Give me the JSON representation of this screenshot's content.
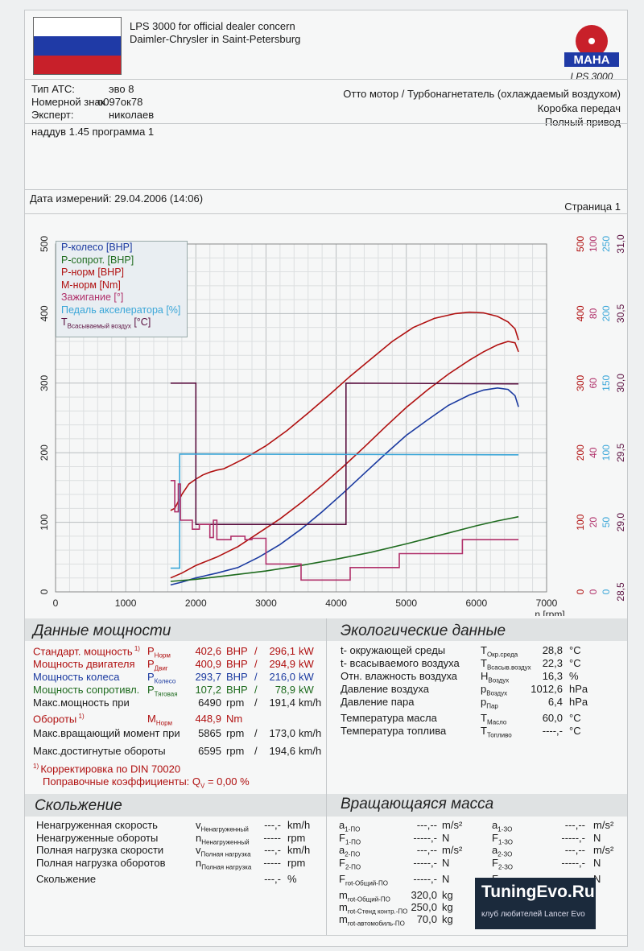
{
  "header": {
    "title_line1": "LPS 3000 for official dealer concern",
    "title_line2": "Daimler-Chrysler in Saint-Petersburg",
    "logo_text": "MAHA",
    "logo_sub": "LPS 3000"
  },
  "vehicle": {
    "type_label": "Тип АТС:",
    "type_value": "эво 8",
    "plate_label": "Номерной знак",
    "plate_value": "о097ок78",
    "expert_label": "Эксперт:",
    "expert_value": "николаев",
    "engine": "Отто мотор / Турбонагнетатель (охлаждаемый воздухом)",
    "gearbox": "Коробка передач",
    "drive": "Полный привод",
    "note": "наддув 1.45 программа 1"
  },
  "measure": {
    "date_text": "Дата измерений: 29.04.2006 (14:06)",
    "page_text": "Страница 1"
  },
  "legend": {
    "items": [
      {
        "text": "P-колесо [BHP]",
        "color": "#1b3aa0"
      },
      {
        "text": "P-сопрот. [BHP]",
        "color": "#1e6b1e"
      },
      {
        "text": "P-норм [BHP]",
        "color": "#b01010"
      },
      {
        "text": "M-норм [Nm]",
        "color": "#b01010"
      },
      {
        "text": "Зажигание [°]",
        "color": "#b0306a"
      },
      {
        "text": "Педаль акселератора [%]",
        "color": "#3aa6d8"
      },
      {
        "text": "T",
        "sub": "Всасываемый воздух",
        "tail": " [°C]",
        "color": "#5a1040"
      }
    ]
  },
  "chart_data": {
    "type": "line",
    "x_label": "n [rpm]",
    "x_ticks": [
      "0",
      "1000",
      "2000",
      "3000",
      "4000",
      "5000",
      "6000",
      "7000"
    ],
    "xlim": [
      0,
      7000
    ],
    "ylim": [
      0,
      500
    ],
    "y_ticks_left": [
      "0",
      "100",
      "200",
      "300",
      "400",
      "500"
    ],
    "right_axes": [
      {
        "color": "#b01010",
        "ticks": [
          "0",
          "100",
          "200",
          "300",
          "400",
          "500"
        ]
      },
      {
        "color": "#b0306a",
        "ticks": [
          "0",
          "20",
          "40",
          "60",
          "80",
          "100"
        ]
      },
      {
        "color": "#3aa6d8",
        "ticks": [
          "0",
          "50",
          "100",
          "150",
          "200",
          "250"
        ]
      },
      {
        "color": "#5a1040",
        "ticks": [
          "28,5",
          "29,0",
          "29,5",
          "30,0",
          "30,5",
          "31,0"
        ]
      }
    ],
    "grid": true,
    "series": [
      {
        "color": "#b01010",
        "points": [
          [
            1640,
            117
          ],
          [
            1700,
            120
          ],
          [
            1750,
            130
          ],
          [
            1800,
            140
          ],
          [
            1900,
            155
          ],
          [
            2000,
            162
          ],
          [
            2100,
            168
          ],
          [
            2200,
            172
          ],
          [
            2300,
            175
          ],
          [
            2400,
            177
          ],
          [
            2500,
            182
          ],
          [
            2700,
            192
          ],
          [
            3000,
            210
          ],
          [
            3300,
            232
          ],
          [
            3600,
            257
          ],
          [
            3900,
            283
          ],
          [
            4200,
            310
          ],
          [
            4500,
            335
          ],
          [
            4800,
            360
          ],
          [
            5100,
            380
          ],
          [
            5400,
            393
          ],
          [
            5700,
            400
          ],
          [
            5900,
            402
          ],
          [
            6100,
            401
          ],
          [
            6300,
            396
          ],
          [
            6450,
            388
          ],
          [
            6550,
            378
          ],
          [
            6600,
            362
          ]
        ]
      },
      {
        "color": "#b01010",
        "points": [
          [
            1640,
            20
          ],
          [
            1800,
            27
          ],
          [
            2000,
            38
          ],
          [
            2300,
            50
          ],
          [
            2600,
            65
          ],
          [
            2900,
            85
          ],
          [
            3200,
            105
          ],
          [
            3500,
            128
          ],
          [
            3800,
            153
          ],
          [
            4100,
            180
          ],
          [
            4400,
            208
          ],
          [
            4700,
            237
          ],
          [
            5000,
            265
          ],
          [
            5300,
            290
          ],
          [
            5600,
            313
          ],
          [
            5900,
            333
          ],
          [
            6100,
            345
          ],
          [
            6300,
            355
          ],
          [
            6450,
            360
          ],
          [
            6550,
            358
          ],
          [
            6600,
            345
          ]
        ]
      },
      {
        "color": "#1b3aa0",
        "points": [
          [
            1640,
            10
          ],
          [
            1800,
            14
          ],
          [
            2000,
            20
          ],
          [
            2300,
            27
          ],
          [
            2600,
            35
          ],
          [
            2900,
            50
          ],
          [
            3200,
            68
          ],
          [
            3500,
            90
          ],
          [
            3800,
            115
          ],
          [
            4100,
            142
          ],
          [
            4400,
            170
          ],
          [
            4700,
            198
          ],
          [
            5000,
            225
          ],
          [
            5300,
            247
          ],
          [
            5600,
            268
          ],
          [
            5900,
            283
          ],
          [
            6100,
            290
          ],
          [
            6300,
            293
          ],
          [
            6450,
            291
          ],
          [
            6550,
            282
          ],
          [
            6600,
            266
          ]
        ]
      },
      {
        "color": "#1e6b1e",
        "points": [
          [
            1640,
            15
          ],
          [
            2000,
            18
          ],
          [
            2500,
            24
          ],
          [
            3000,
            30
          ],
          [
            3500,
            38
          ],
          [
            4000,
            47
          ],
          [
            4500,
            57
          ],
          [
            5000,
            69
          ],
          [
            5500,
            82
          ],
          [
            6000,
            95
          ],
          [
            6300,
            102
          ],
          [
            6600,
            108
          ]
        ]
      },
      {
        "color": "#5a1040",
        "points": [
          [
            1640,
            300
          ],
          [
            2000,
            300
          ],
          [
            2000,
            97
          ],
          [
            4140,
            97
          ],
          [
            4140,
            300
          ],
          [
            6600,
            299
          ]
        ]
      },
      {
        "color": "#3aa6d8",
        "points": [
          [
            1640,
            34
          ],
          [
            1770,
            34
          ],
          [
            1770,
            198
          ],
          [
            6600,
            197
          ]
        ]
      },
      {
        "color": "#b0306a",
        "points": [
          [
            1640,
            160
          ],
          [
            1700,
            160
          ],
          [
            1700,
            115
          ],
          [
            1750,
            115
          ],
          [
            1750,
            155
          ],
          [
            1780,
            155
          ],
          [
            1780,
            103
          ],
          [
            1950,
            103
          ],
          [
            1950,
            90
          ],
          [
            2050,
            90
          ],
          [
            2050,
            97
          ],
          [
            2200,
            97
          ],
          [
            2200,
            78
          ],
          [
            2250,
            78
          ],
          [
            2250,
            103
          ],
          [
            2300,
            103
          ],
          [
            2300,
            75
          ],
          [
            2500,
            75
          ],
          [
            2500,
            80
          ],
          [
            2700,
            80
          ],
          [
            2700,
            75
          ],
          [
            2800,
            75
          ],
          [
            2800,
            77
          ],
          [
            3000,
            77
          ],
          [
            3000,
            40
          ],
          [
            3500,
            40
          ],
          [
            3500,
            17
          ],
          [
            4100,
            17
          ],
          [
            4100,
            17
          ],
          [
            4200,
            17
          ],
          [
            4200,
            35
          ],
          [
            4900,
            35
          ],
          [
            4900,
            55
          ],
          [
            5800,
            55
          ],
          [
            5800,
            75
          ],
          [
            6600,
            75
          ]
        ]
      }
    ]
  },
  "power": {
    "title": "Данные мощности",
    "rows": [
      {
        "label": "Стандарт. мощность",
        "sup": "1)",
        "sym": "P",
        "sub": "Норм",
        "v1": "402,6",
        "u1": "BHP",
        "v2": "296,1",
        "u2": "kW",
        "cls": "red"
      },
      {
        "label": "Мощность двигателя",
        "sup": "",
        "sym": "P",
        "sub": "Двиг",
        "v1": "400,9",
        "u1": "BHP",
        "v2": "294,9",
        "u2": "kW",
        "cls": "red"
      },
      {
        "label": "Мощность колеса",
        "sup": "",
        "sym": "P",
        "sub": "Колесо",
        "v1": "293,7",
        "u1": "BHP",
        "v2": "216,0",
        "u2": "kW",
        "cls": "blue"
      },
      {
        "label": "Мощность сопротивл.",
        "sup": "",
        "sym": "P",
        "sub": "Тяговая",
        "v1": "107,2",
        "u1": "BHP",
        "v2": "78,9",
        "u2": "kW",
        "cls": "green"
      },
      {
        "label": "Макс.мощность при",
        "sup": "",
        "sym": "",
        "sub": "",
        "v1": "6490",
        "u1": "rpm",
        "v2": "191,4",
        "u2": "km/h",
        "cls": ""
      }
    ],
    "torque": {
      "label": "Обороты",
      "sup": "1)",
      "sym": "M",
      "sub": "Норм",
      "v1": "448,9",
      "u1": "Nm"
    },
    "rows2": [
      {
        "label": "Макс.вращающий момент при",
        "v1": "5865",
        "u1": "rpm",
        "v2": "173,0",
        "u2": "km/h"
      },
      {
        "label": "Макс.достигнутые обороты",
        "v1": "6595",
        "u1": "rpm",
        "v2": "194,6",
        "u2": "km/h"
      }
    ],
    "note1": "Корректировка по DIN 70020",
    "note1_sup": "1)",
    "note2": "Поправочные коэффициенты: Q",
    "note2_sub": "V",
    "note2_tail": " =   0,00 %"
  },
  "eco": {
    "title": "Экологические данные",
    "rows": [
      {
        "label": "t- окружающей среды",
        "sym": "T",
        "sub": "Окр.среда",
        "v": "28,8",
        "u": "°C"
      },
      {
        "label": "t- всасываемого воздуха",
        "sym": "T",
        "sub": "Всасыв.воздух",
        "v": "22,3",
        "u": "°C"
      },
      {
        "label": "Отн. влажность воздуха",
        "sym": "H",
        "sub": "Воздух",
        "v": "16,3",
        "u": "%"
      },
      {
        "label": "Давление воздуха",
        "sym": "p",
        "sub": "Воздух",
        "v": "1012,6",
        "u": "hPa"
      },
      {
        "label": "Давление пара",
        "sym": "p",
        "sub": "Пар",
        "v": "6,4",
        "u": "hPa"
      },
      {
        "label": "Температура масла",
        "sym": "T",
        "sub": "Масло",
        "v": "60,0",
        "u": "°C"
      },
      {
        "label": "Температура топлива",
        "sym": "T",
        "sub": "Топливо",
        "v": "----,-",
        "u": "°C"
      }
    ]
  },
  "slip": {
    "title": "Скольжение",
    "rows": [
      {
        "label": "Ненагруженная  скорость",
        "sym": "v",
        "sub": "Ненагруженный",
        "v": "---,-",
        "u": "km/h"
      },
      {
        "label": "Ненагруженные  обороты",
        "sym": "n",
        "sub": "Ненагруженный",
        "v": "-----",
        "u": "rpm"
      },
      {
        "label": "Полная нагрузка скорости",
        "sym": "v",
        "sub": "Полная нагрузка",
        "v": "---,-",
        "u": "km/h"
      },
      {
        "label": "Полная нагрузка оборотов",
        "sym": "n",
        "sub": "Полная нагрузка",
        "v": "-----",
        "u": "rpm"
      },
      {
        "label": "Скольжение",
        "sym": "",
        "sub": "",
        "v": "---,-",
        "u": "%"
      }
    ]
  },
  "mass": {
    "title": "Вращающаяся масса",
    "left": [
      {
        "sym": "a",
        "sub": "1-ПО",
        "v": "---,--",
        "u": "m/s²"
      },
      {
        "sym": "F",
        "sub": "1-ПО",
        "v": "-----,-",
        "u": "N"
      },
      {
        "sym": "a",
        "sub": "2-ПО",
        "v": "---,--",
        "u": "m/s²"
      },
      {
        "sym": "F",
        "sub": "2-ПО",
        "v": "-----,-",
        "u": "N"
      },
      {
        "sym": "F",
        "sub": "rot-Общий-ПО",
        "v": "-----,-",
        "u": "N"
      },
      {
        "sym": "m",
        "sub": "rot-Общий-ПО",
        "v": "320,0",
        "u": "kg"
      },
      {
        "sym": "m",
        "sub": "rot-Стенд контр.-ПО",
        "v": "250,0",
        "u": "kg"
      },
      {
        "sym": "m",
        "sub": "rot-автомобиль-ПО",
        "v": "70,0",
        "u": "kg"
      }
    ],
    "right": [
      {
        "sym": "a",
        "sub": "1-ЗО",
        "v": "---,--",
        "u": "m/s²"
      },
      {
        "sym": "F",
        "sub": "1-ЗО",
        "v": "-----,-",
        "u": "N"
      },
      {
        "sym": "a",
        "sub": "2-ЗО",
        "v": "---,--",
        "u": "m/s²"
      },
      {
        "sym": "F",
        "sub": "2-ЗО",
        "v": "-----,-",
        "u": "N"
      },
      {
        "sym": "F",
        "sub": "rot-Общий-ЗО",
        "v": "-----,-",
        "u": "N"
      },
      {
        "sym": "m",
        "sub": "",
        "v": "",
        "u": ""
      },
      {
        "sym": "m",
        "sub": "",
        "v": "",
        "u": ""
      },
      {
        "sym": "m",
        "sub": "",
        "v": "",
        "u": ""
      }
    ]
  },
  "watermark": {
    "brand": "TuningEvo.Ru",
    "tagline": "клуб любителей Lancer Evo"
  }
}
